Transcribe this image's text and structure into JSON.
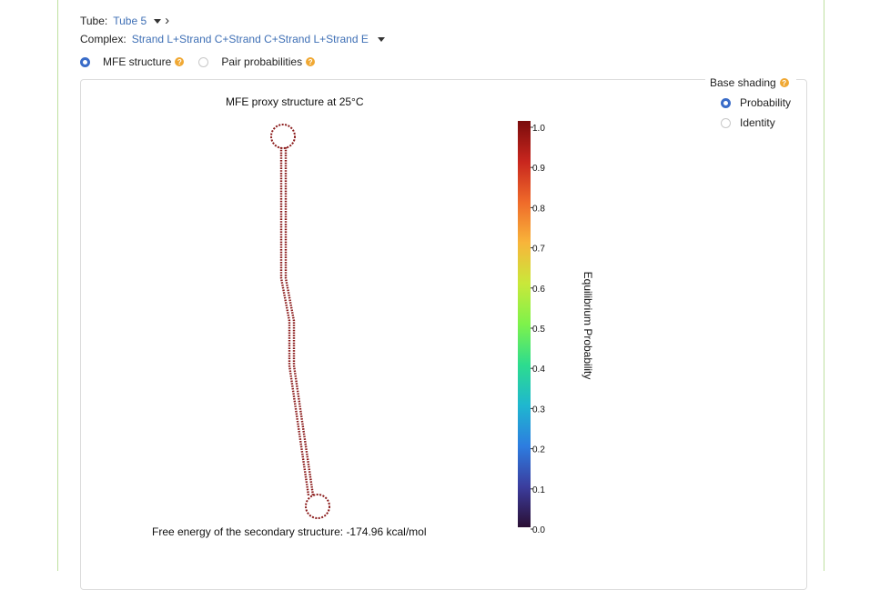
{
  "tube": {
    "label": "Tube:",
    "value": "Tube 5"
  },
  "complex": {
    "label": "Complex:",
    "value": "Strand L+Strand C+Strand C+Strand L+Strand E"
  },
  "view_options": [
    {
      "label": "MFE structure",
      "selected": true
    },
    {
      "label": "Pair probabilities",
      "selected": false
    }
  ],
  "base_shading": {
    "title": "Base shading",
    "options": [
      {
        "label": "Probability",
        "selected": true
      },
      {
        "label": "Identity",
        "selected": false
      }
    ]
  },
  "structure": {
    "title": "MFE proxy structure at 25°C",
    "free_energy": "Free energy of the secondary structure: -174.96 kcal/mol"
  },
  "colorbar": {
    "label": "Equilibrium Probability",
    "ticks": [
      "1.0",
      "0.9",
      "0.8",
      "0.7",
      "0.6",
      "0.5",
      "0.4",
      "0.3",
      "0.2",
      "0.1",
      "0.0"
    ],
    "colors": [
      "#2b0f33",
      "#3b3d9e",
      "#2d7de0",
      "#1fb7cf",
      "#2ddc8e",
      "#7ef24b",
      "#c9e83a",
      "#f8b53a",
      "#ef6a2a",
      "#c8261e",
      "#7a0c0c"
    ]
  }
}
